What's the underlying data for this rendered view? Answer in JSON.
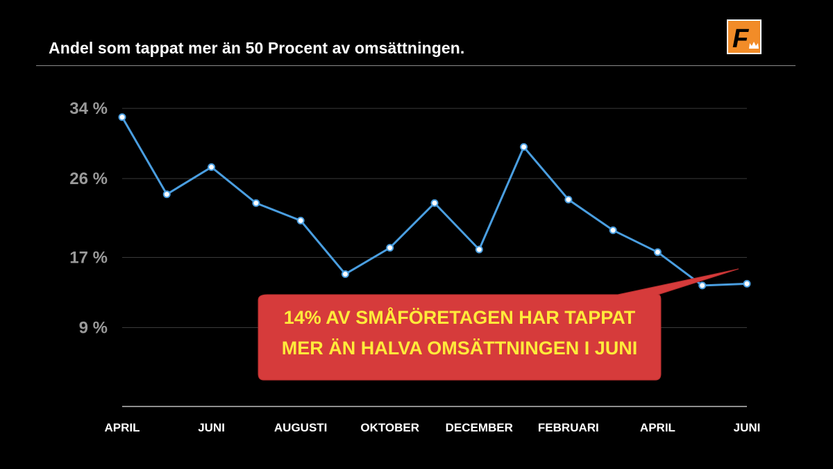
{
  "header": {
    "title": "Andel som tappat mer än 50 Procent av omsättningen.",
    "logo_letter": "F"
  },
  "colors": {
    "background": "#000000",
    "line": "#4a9ee0",
    "grid": "#3a3a3a",
    "callout_fill": "#d63b3b",
    "callout_text": "#ffeb3b",
    "logo": "#f28c28"
  },
  "chart_data": {
    "type": "line",
    "title": "Andel som tappat mer än 50 Procent av omsättningen.",
    "xlabel": "",
    "ylabel": "",
    "x_tick_labels": [
      "APRIL",
      "JUNI",
      "AUGUSTI",
      "OKTOBER",
      "DECEMBER",
      "FEBRUARI",
      "APRIL",
      "JUNI"
    ],
    "y_ticks": [
      34,
      26,
      17,
      9
    ],
    "y_tick_labels": [
      "34 %",
      "26 %",
      "17 %",
      "9 %"
    ],
    "ylim": [
      0,
      34
    ],
    "grid": true,
    "series": [
      {
        "values": [
          33,
          24.2,
          27.3,
          23.2,
          21.2,
          15.1,
          18.1,
          23.2,
          17.9,
          29.6,
          23.6,
          20.1,
          17.6,
          13.8,
          14
        ]
      }
    ],
    "annotation": {
      "lines": [
        "14% AV SMÅFÖRETAGEN HAR TAPPAT",
        "MER ÄN HALVA OMSÄTTNINGEN I JUNI"
      ]
    }
  }
}
